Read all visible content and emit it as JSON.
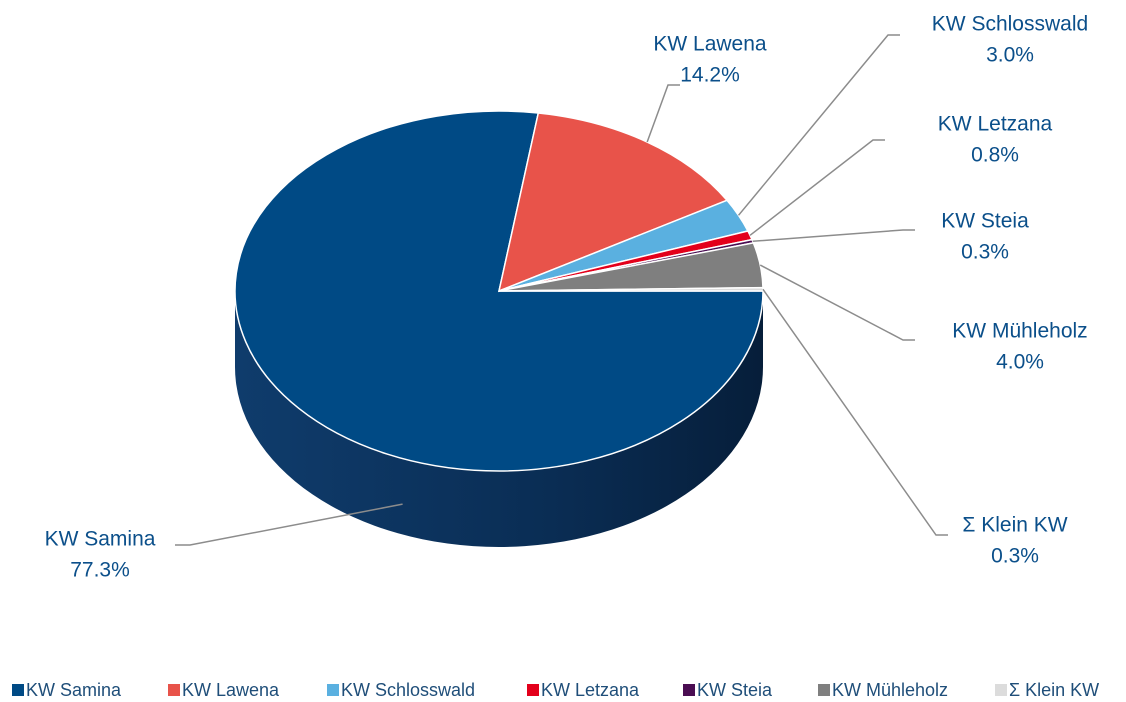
{
  "chart_data": {
    "type": "pie",
    "categories": [
      "KW Samina",
      "KW Lawena",
      "KW Schlosswald",
      "KW Letzana",
      "KW Steia",
      "KW Mühleholz",
      "Σ Klein KW"
    ],
    "values": [
      77.3,
      14.2,
      3.0,
      0.8,
      0.3,
      4.0,
      0.3
    ],
    "value_labels": [
      "77.3%",
      "14.2%",
      "3.0%",
      "0.8%",
      "0.3%",
      "4.0%",
      "0.3%"
    ],
    "colors": [
      "#004a85",
      "#e8534a",
      "#5ab0e0",
      "#e3001b",
      "#4a0d52",
      "#7f7f7f",
      "#dcdcdc"
    ],
    "legend": "bottom"
  }
}
